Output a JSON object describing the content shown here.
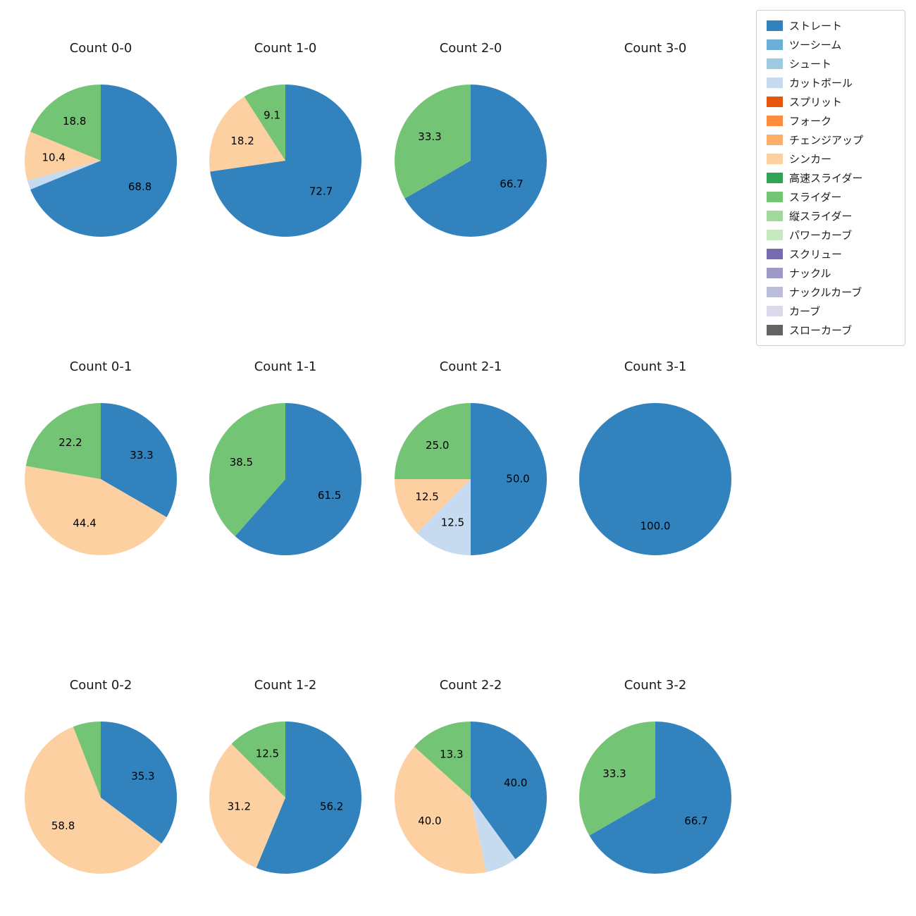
{
  "figure": {
    "background": "#ffffff"
  },
  "legend": {
    "position": "upper-right",
    "items": [
      {
        "label": "ストレート",
        "color": "#3182bd"
      },
      {
        "label": "ツーシーム",
        "color": "#6baed6"
      },
      {
        "label": "シュート",
        "color": "#9ecae1"
      },
      {
        "label": "カットボール",
        "color": "#c6dbef"
      },
      {
        "label": "スプリット",
        "color": "#e6550d"
      },
      {
        "label": "フォーク",
        "color": "#fd8d3c"
      },
      {
        "label": "チェンジアップ",
        "color": "#fdae6b"
      },
      {
        "label": "シンカー",
        "color": "#fdd0a2"
      },
      {
        "label": "高速スライダー",
        "color": "#31a354"
      },
      {
        "label": "スライダー",
        "color": "#74c476"
      },
      {
        "label": "縦スライダー",
        "color": "#a1d99b"
      },
      {
        "label": "パワーカーブ",
        "color": "#c7e9c0"
      },
      {
        "label": "スクリュー",
        "color": "#756bb1"
      },
      {
        "label": "ナックル",
        "color": "#9e9ac8"
      },
      {
        "label": "ナックルカーブ",
        "color": "#bcbddc"
      },
      {
        "label": "カーブ",
        "color": "#dadaeb"
      },
      {
        "label": "スローカーブ",
        "color": "#636363"
      }
    ]
  },
  "chart_data": [
    {
      "type": "pie",
      "title": "Count 0-0",
      "col": 0,
      "row": 0,
      "labels": [
        "ストレート",
        "カットボール",
        "シンカー",
        "スライダー"
      ],
      "values": [
        68.8,
        2.0,
        10.4,
        18.8
      ],
      "pct_labels": [
        "68.8",
        "",
        "10.4",
        "18.8"
      ]
    },
    {
      "type": "pie",
      "title": "Count 1-0",
      "col": 1,
      "row": 0,
      "labels": [
        "ストレート",
        "シンカー",
        "スライダー"
      ],
      "values": [
        72.7,
        18.2,
        9.1
      ],
      "pct_labels": [
        "72.7",
        "18.2",
        "9.1"
      ]
    },
    {
      "type": "pie",
      "title": "Count 2-0",
      "col": 2,
      "row": 0,
      "labels": [
        "ストレート",
        "スライダー"
      ],
      "values": [
        66.7,
        33.3
      ],
      "pct_labels": [
        "66.7",
        "33.3"
      ]
    },
    {
      "type": "pie",
      "title": "Count 3-0",
      "col": 3,
      "row": 0,
      "labels": [],
      "values": [],
      "pct_labels": []
    },
    {
      "type": "pie",
      "title": "Count 0-1",
      "col": 0,
      "row": 1,
      "labels": [
        "ストレート",
        "シンカー",
        "スライダー"
      ],
      "values": [
        33.3,
        44.4,
        22.2
      ],
      "pct_labels": [
        "33.3",
        "44.4",
        "22.2"
      ]
    },
    {
      "type": "pie",
      "title": "Count 1-1",
      "col": 1,
      "row": 1,
      "labels": [
        "ストレート",
        "スライダー"
      ],
      "values": [
        61.5,
        38.5
      ],
      "pct_labels": [
        "61.5",
        "38.5"
      ]
    },
    {
      "type": "pie",
      "title": "Count 2-1",
      "col": 2,
      "row": 1,
      "labels": [
        "ストレート",
        "カットボール",
        "シンカー",
        "スライダー"
      ],
      "values": [
        50.0,
        12.5,
        12.5,
        25.0
      ],
      "pct_labels": [
        "50.0",
        "12.5",
        "12.5",
        "25.0"
      ]
    },
    {
      "type": "pie",
      "title": "Count 3-1",
      "col": 3,
      "row": 1,
      "labels": [
        "ストレート"
      ],
      "values": [
        100.0
      ],
      "pct_labels": [
        "100.0"
      ]
    },
    {
      "type": "pie",
      "title": "Count 0-2",
      "col": 0,
      "row": 2,
      "labels": [
        "ストレート",
        "シンカー",
        "スライダー"
      ],
      "values": [
        35.3,
        58.8,
        5.9
      ],
      "pct_labels": [
        "35.3",
        "58.8",
        ""
      ]
    },
    {
      "type": "pie",
      "title": "Count 1-2",
      "col": 1,
      "row": 2,
      "labels": [
        "ストレート",
        "シンカー",
        "スライダー"
      ],
      "values": [
        56.2,
        31.2,
        12.5
      ],
      "pct_labels": [
        "56.2",
        "31.2",
        "12.5"
      ]
    },
    {
      "type": "pie",
      "title": "Count 2-2",
      "col": 2,
      "row": 2,
      "labels": [
        "ストレート",
        "カットボール",
        "シンカー",
        "スライダー"
      ],
      "values": [
        40.0,
        6.7,
        40.0,
        13.3
      ],
      "pct_labels": [
        "40.0",
        "",
        "40.0",
        "13.3"
      ]
    },
    {
      "type": "pie",
      "title": "Count 3-2",
      "col": 3,
      "row": 2,
      "labels": [
        "ストレート",
        "スライダー"
      ],
      "values": [
        66.7,
        33.3
      ],
      "pct_labels": [
        "66.7",
        "33.3"
      ]
    }
  ]
}
